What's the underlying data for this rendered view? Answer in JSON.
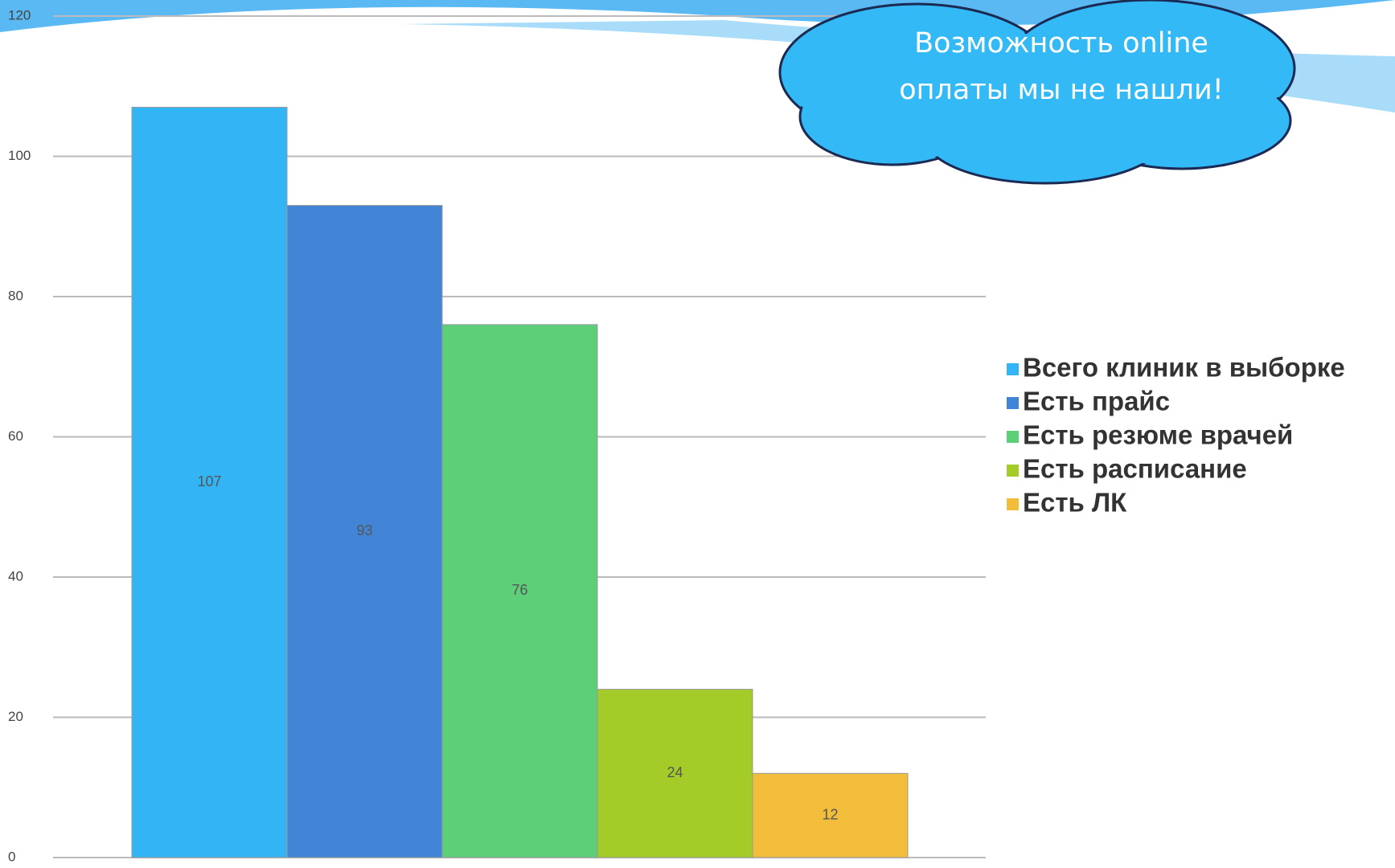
{
  "chart_data": {
    "type": "bar",
    "series": [
      {
        "name": "Всего клиник в выборке",
        "color": "#33b5f5",
        "values": [
          107
        ]
      },
      {
        "name": "Есть прайс",
        "color": "#4285d6",
        "values": [
          93
        ]
      },
      {
        "name": "Есть резюме врачей",
        "color": "#5ccf78",
        "values": [
          76
        ]
      },
      {
        "name": "Есть расписание",
        "color": "#a4cc28",
        "values": [
          24
        ]
      },
      {
        "name": "Есть ЛК",
        "color": "#f3bd3c",
        "values": [
          12
        ]
      }
    ],
    "ylim": [
      0,
      120
    ],
    "yticks": [
      0,
      20,
      40,
      60,
      80,
      100,
      120
    ],
    "grid": true,
    "legend": "right",
    "annotation": [
      "Возможность online",
      "оплаты мы не нашли!"
    ]
  }
}
